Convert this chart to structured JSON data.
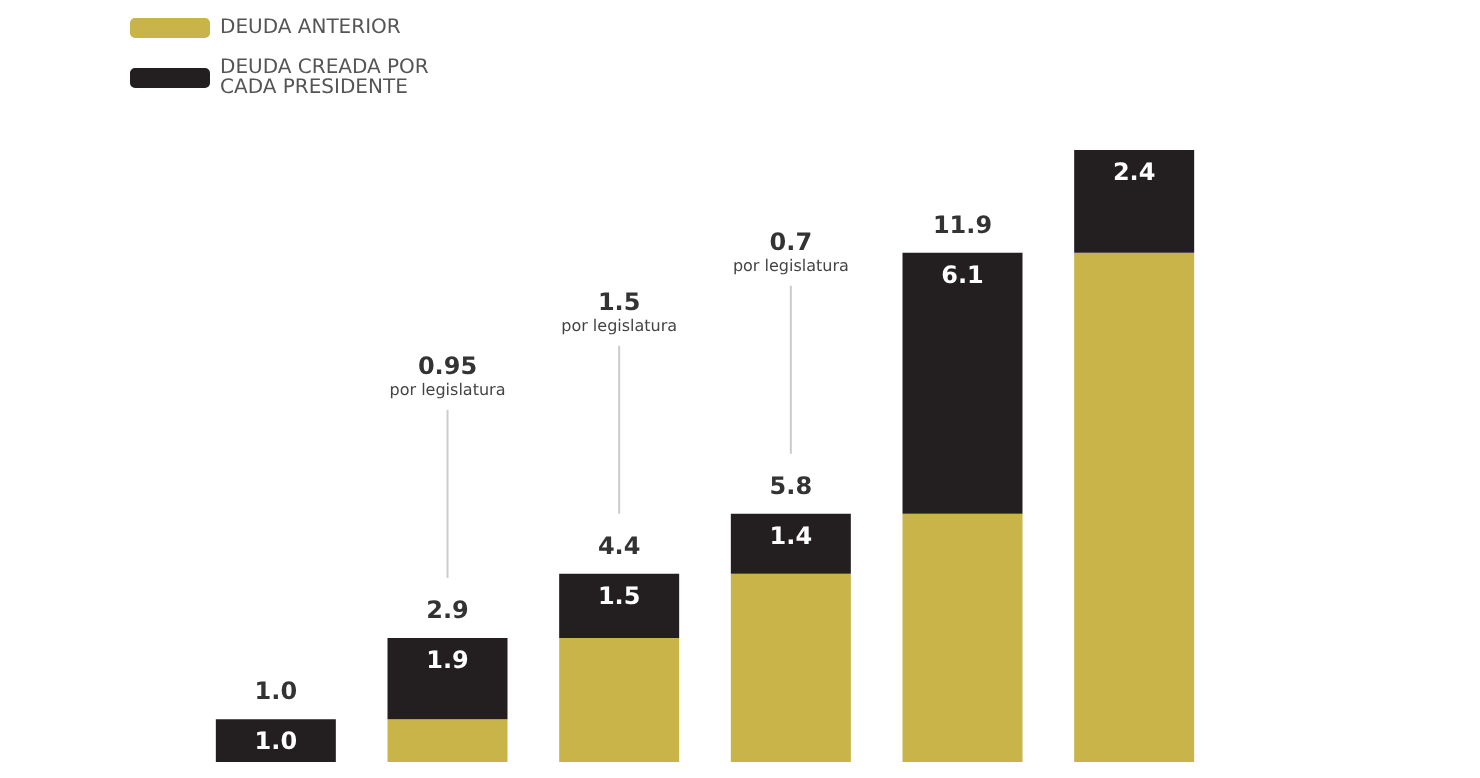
{
  "chart_data": {
    "type": "bar",
    "stacked": true,
    "categories": [
      null,
      null,
      null,
      null,
      null,
      null
    ],
    "series": [
      {
        "name": "DEUDA ANTERIOR",
        "color": "#c9b44a",
        "values": [
          0,
          1.0,
          2.9,
          4.4,
          5.8,
          11.9
        ]
      },
      {
        "name": "DEUDA CREADA POR CADA PRESIDENTE",
        "color": "#231f20",
        "values": [
          1.0,
          1.9,
          1.5,
          1.4,
          6.1,
          2.4
        ],
        "value_labels": [
          "1.0",
          "1.9",
          "1.5",
          "1.4",
          "6.1",
          "2.4"
        ]
      }
    ],
    "totals": [
      "1.0",
      "2.9",
      "4.4",
      "5.8",
      "11.9",
      null
    ],
    "annotations": [
      "0.95 por legislatura",
      "1.5 por legislatura",
      "0.7 por legislatura"
    ],
    "legend": "top left"
  }
}
